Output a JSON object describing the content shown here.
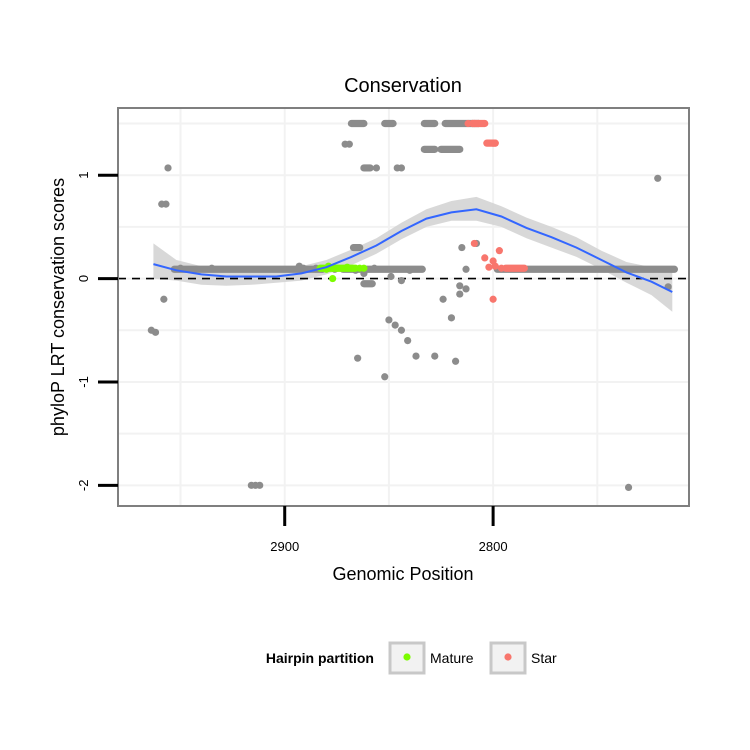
{
  "chart_data": {
    "type": "scatter",
    "title": "Conservation",
    "xlabel": "Genomic Position",
    "ylabel": "phyloP LRT conservation scores",
    "x_reversed": true,
    "xlim": [
      2980,
      2706
    ],
    "ylim": [
      -2.2,
      1.65
    ],
    "xticks": [
      2900,
      2800
    ],
    "xtick_labels": [
      "2900",
      "2800"
    ],
    "yticks": [
      -2,
      -1,
      0,
      1
    ],
    "ytick_labels": [
      "-2",
      "-1",
      "0",
      "1"
    ],
    "grid": true,
    "reference_line": {
      "y": 0,
      "style": "dashed"
    },
    "colors": {
      "Other": "#8c8c8c",
      "Mature": "#7cfc00",
      "Star": "#f8766d",
      "smooth": "#3366ff",
      "band": "#d4d4d4",
      "panel_border": "#7f7f7f",
      "grid": "#f2f2f2"
    },
    "legend": {
      "title": "Hairpin partition",
      "position": "bottom",
      "entries": [
        {
          "label": "Mature",
          "color": "#7cfc00"
        },
        {
          "label": "Star",
          "color": "#f8766d"
        }
      ]
    },
    "point_groups": [
      {
        "name": "Other",
        "segments": [
          {
            "x0": 2953,
            "x1": 2882,
            "y": 0.09
          },
          {
            "x0": 2872,
            "x1": 2834,
            "y": 0.09
          },
          {
            "x0": 2798,
            "x1": 2713,
            "y": 0.09
          },
          {
            "x0": 2868,
            "x1": 2862,
            "y": 1.5
          },
          {
            "x0": 2852,
            "x1": 2848,
            "y": 1.5
          },
          {
            "x0": 2833,
            "x1": 2828,
            "y": 1.5
          },
          {
            "x0": 2823,
            "x1": 2807,
            "y": 1.5
          },
          {
            "x0": 2833,
            "x1": 2828,
            "y": 1.25
          },
          {
            "x0": 2825,
            "x1": 2816,
            "y": 1.25
          },
          {
            "x0": 2862,
            "x1": 2859,
            "y": 1.07
          },
          {
            "x0": 2867,
            "x1": 2864,
            "y": 0.3
          },
          {
            "x0": 2862,
            "x1": 2858,
            "y": -0.05
          }
        ],
        "points": [
          {
            "x": 2956,
            "y": 1.07
          },
          {
            "x": 2959,
            "y": 0.72
          },
          {
            "x": 2957,
            "y": 0.72
          },
          {
            "x": 2964,
            "y": -0.5
          },
          {
            "x": 2962,
            "y": -0.52
          },
          {
            "x": 2958,
            "y": -0.2
          },
          {
            "x": 2950,
            "y": 0.1
          },
          {
            "x": 2935,
            "y": 0.1
          },
          {
            "x": 2885,
            "y": 0.1
          },
          {
            "x": 2893,
            "y": 0.12
          },
          {
            "x": 2891,
            "y": 0.1
          },
          {
            "x": 2882,
            "y": 0.09
          },
          {
            "x": 2876,
            "y": 0.09
          },
          {
            "x": 2871,
            "y": 1.3
          },
          {
            "x": 2869,
            "y": 1.3
          },
          {
            "x": 2856,
            "y": 1.07
          },
          {
            "x": 2857,
            "y": 0.1
          },
          {
            "x": 2844,
            "y": 1.07
          },
          {
            "x": 2846,
            "y": 1.07
          },
          {
            "x": 2840,
            "y": 0.08
          },
          {
            "x": 2810,
            "y": 1.5
          },
          {
            "x": 2807,
            "y": 1.5
          },
          {
            "x": 2808,
            "y": 0.34
          },
          {
            "x": 2815,
            "y": 0.3
          },
          {
            "x": 2813,
            "y": 0.09
          },
          {
            "x": 2816,
            "y": -0.07
          },
          {
            "x": 2865,
            "y": -0.77
          },
          {
            "x": 2852,
            "y": -0.95
          },
          {
            "x": 2850,
            "y": -0.4
          },
          {
            "x": 2847,
            "y": -0.45
          },
          {
            "x": 2844,
            "y": -0.5
          },
          {
            "x": 2841,
            "y": -0.6
          },
          {
            "x": 2837,
            "y": -0.75
          },
          {
            "x": 2828,
            "y": -0.75
          },
          {
            "x": 2818,
            "y": -0.8
          },
          {
            "x": 2824,
            "y": -0.2
          },
          {
            "x": 2820,
            "y": -0.38
          },
          {
            "x": 2816,
            "y": -0.15
          },
          {
            "x": 2813,
            "y": -0.1
          },
          {
            "x": 2844,
            "y": -0.02
          },
          {
            "x": 2849,
            "y": 0.02
          },
          {
            "x": 2866,
            "y": 0.08
          },
          {
            "x": 2862,
            "y": 0.05
          },
          {
            "x": 2916,
            "y": -2.0
          },
          {
            "x": 2912,
            "y": -2.0
          },
          {
            "x": 2914,
            "y": -2.0
          },
          {
            "x": 2735,
            "y": -2.02
          },
          {
            "x": 2721,
            "y": 0.97
          },
          {
            "x": 2716,
            "y": -0.08
          }
        ]
      },
      {
        "name": "Mature",
        "segments": [
          {
            "x0": 2883,
            "x1": 2866,
            "y": 0.1
          }
        ],
        "points": [
          {
            "x": 2879,
            "y": 0.12
          },
          {
            "x": 2870,
            "y": 0.11
          },
          {
            "x": 2875,
            "y": 0.1
          },
          {
            "x": 2862,
            "y": 0.1
          },
          {
            "x": 2864,
            "y": 0.1
          },
          {
            "x": 2880,
            "y": 0.09
          },
          {
            "x": 2877,
            "y": 0.1
          },
          {
            "x": 2877,
            "y": 0.0
          }
        ]
      },
      {
        "name": "Star",
        "segments": [
          {
            "x0": 2810,
            "x1": 2804,
            "y": 1.5
          },
          {
            "x0": 2803,
            "x1": 2799,
            "y": 1.31
          },
          {
            "x0": 2794,
            "x1": 2785,
            "y": 0.1
          }
        ],
        "points": [
          {
            "x": 2812,
            "y": 1.5
          },
          {
            "x": 2809,
            "y": 1.5
          },
          {
            "x": 2800,
            "y": 1.31
          },
          {
            "x": 2799,
            "y": 1.31
          },
          {
            "x": 2809,
            "y": 0.34
          },
          {
            "x": 2804,
            "y": 0.2
          },
          {
            "x": 2800,
            "y": 0.17
          },
          {
            "x": 2797,
            "y": 0.27
          },
          {
            "x": 2796,
            "y": 0.1
          },
          {
            "x": 2800,
            "y": -0.2
          },
          {
            "x": 2799,
            "y": 0.12
          },
          {
            "x": 2802,
            "y": 0.11
          }
        ]
      }
    ],
    "smooth": {
      "method": "loess",
      "x": [
        2963,
        2952,
        2940,
        2928,
        2916,
        2904,
        2892,
        2880,
        2868,
        2856,
        2844,
        2832,
        2820,
        2808,
        2796,
        2784,
        2772,
        2760,
        2748,
        2736,
        2724,
        2714
      ],
      "y": [
        0.14,
        0.08,
        0.04,
        0.02,
        0.02,
        0.02,
        0.05,
        0.11,
        0.21,
        0.32,
        0.46,
        0.58,
        0.64,
        0.67,
        0.6,
        0.49,
        0.4,
        0.3,
        0.18,
        0.06,
        -0.03,
        -0.13
      ],
      "lo": [
        0.0,
        -0.02,
        -0.06,
        -0.07,
        -0.06,
        -0.04,
        -0.02,
        0.04,
        0.13,
        0.24,
        0.38,
        0.5,
        0.56,
        0.56,
        0.5,
        0.39,
        0.3,
        0.21,
        0.09,
        -0.04,
        -0.16,
        -0.32
      ],
      "hi": [
        0.34,
        0.18,
        0.12,
        0.1,
        0.09,
        0.09,
        0.12,
        0.18,
        0.28,
        0.39,
        0.54,
        0.67,
        0.75,
        0.79,
        0.7,
        0.59,
        0.5,
        0.4,
        0.27,
        0.16,
        0.11,
        0.06
      ]
    }
  }
}
